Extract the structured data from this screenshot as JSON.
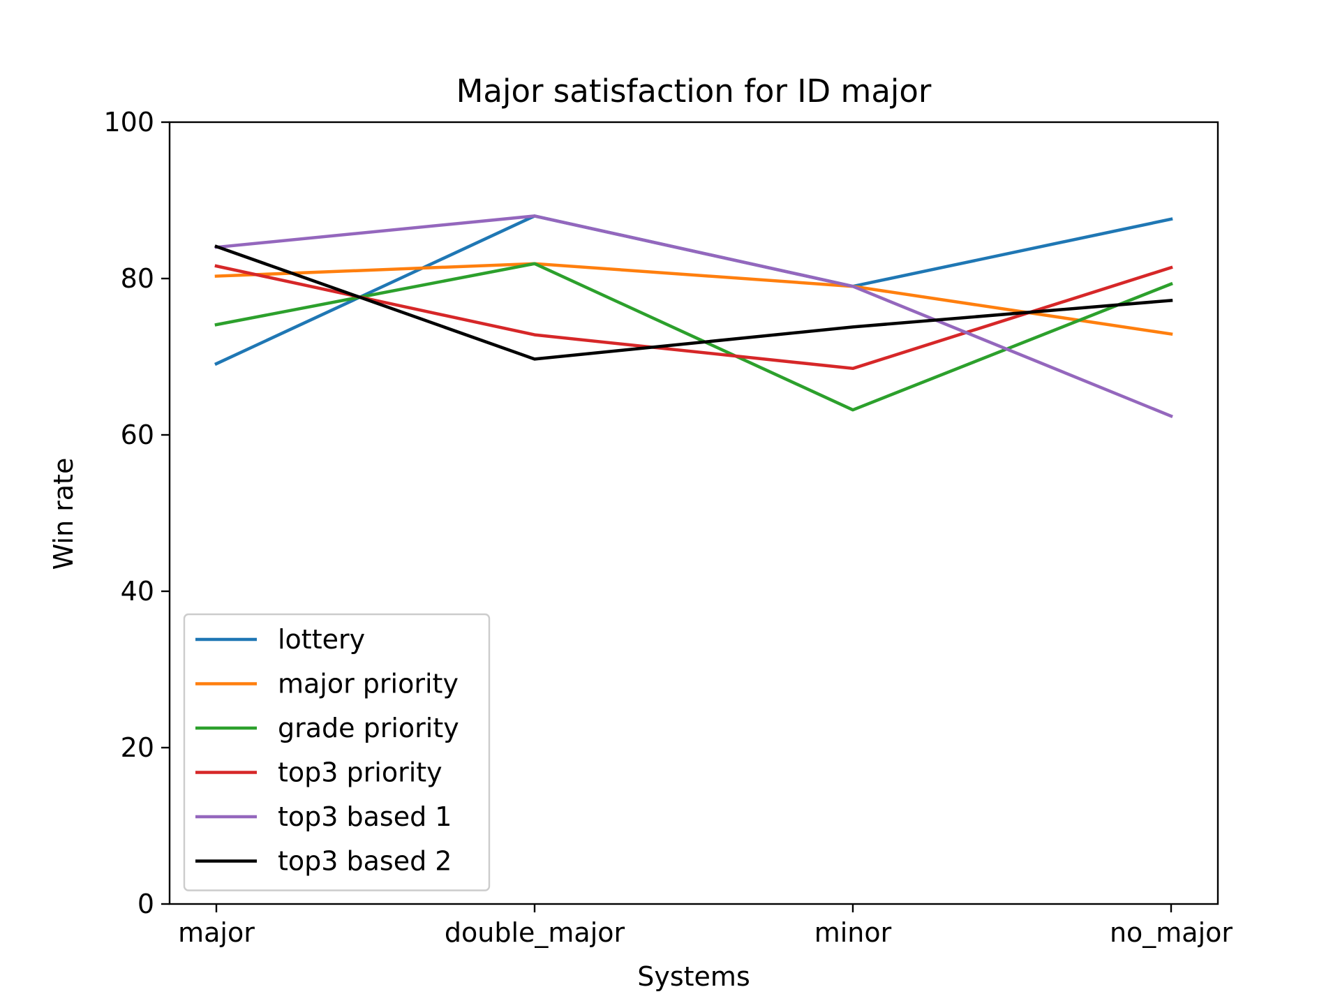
{
  "chart_data": {
    "type": "line",
    "title": "Major satisfaction for ID major",
    "xlabel": "Systems",
    "ylabel": "Win rate",
    "categories": [
      "major",
      "double_major",
      "minor",
      "no_major"
    ],
    "ylim": [
      0,
      100
    ],
    "yticks": [
      0,
      20,
      40,
      60,
      80,
      100
    ],
    "ytick_labels": [
      "0",
      "20",
      "40",
      "60",
      "80",
      "100"
    ],
    "grid": false,
    "legend_position": "lower-left",
    "series": [
      {
        "name": "lottery",
        "color": "#1f77b4",
        "values": [
          69.1,
          88.0,
          79.0,
          87.6
        ]
      },
      {
        "name": "major priority",
        "color": "#ff7f0e",
        "values": [
          80.3,
          81.9,
          79.0,
          72.9
        ]
      },
      {
        "name": "grade priority",
        "color": "#2ca02c",
        "values": [
          74.1,
          81.9,
          63.2,
          79.3
        ]
      },
      {
        "name": "top3 priority",
        "color": "#d62728",
        "values": [
          81.6,
          72.8,
          68.5,
          81.4
        ]
      },
      {
        "name": "top3 based 1",
        "color": "#9467bd",
        "values": [
          84.0,
          88.0,
          79.0,
          62.4
        ]
      },
      {
        "name": "top3 based 2",
        "color": "#000000",
        "values": [
          84.1,
          69.7,
          73.8,
          77.2
        ]
      }
    ]
  }
}
